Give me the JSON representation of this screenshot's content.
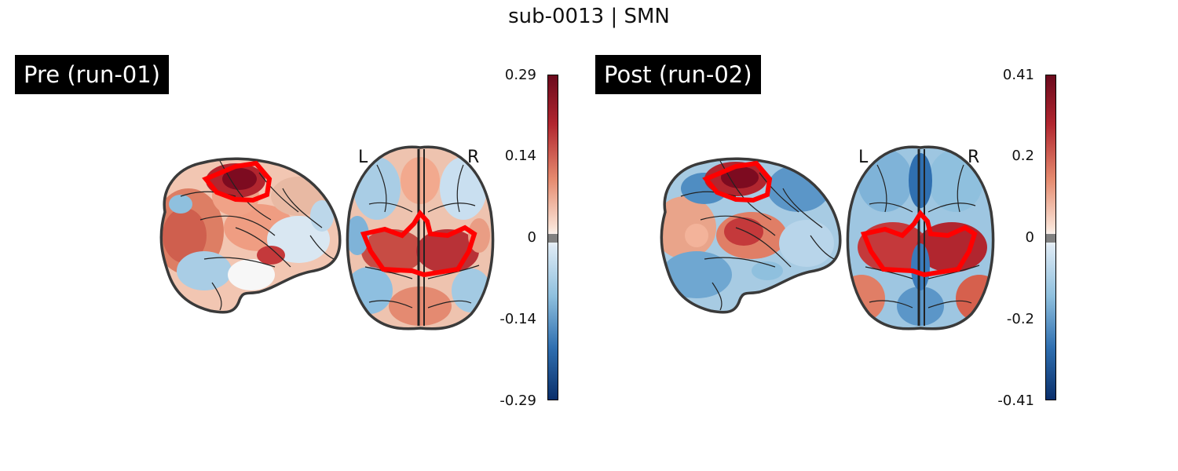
{
  "title": "sub-0013 | SMN",
  "panels": [
    {
      "label": "Pre (run-01)",
      "colorbar": {
        "ticks": [
          "0.29",
          "0.14",
          "0",
          "-0.14",
          "-0.29"
        ],
        "vmin": -0.29,
        "vmax": 0.29
      },
      "axial_left": "L",
      "axial_right": "R"
    },
    {
      "label": "Post (run-02)",
      "colorbar": {
        "ticks": [
          "0.41",
          "0.2",
          "0",
          "-0.2",
          "-0.41"
        ],
        "vmin": -0.41,
        "vmax": 0.41
      },
      "axial_left": "L",
      "axial_right": "R"
    }
  ],
  "colors": {
    "roi_outline": "#ff0000",
    "colormap": [
      "#0a2f6b",
      "#2f6fb0",
      "#8fc0de",
      "#f7f7f7",
      "#f3a481",
      "#c4393b",
      "#6b0a1d"
    ],
    "zero_band": "#808080"
  }
}
